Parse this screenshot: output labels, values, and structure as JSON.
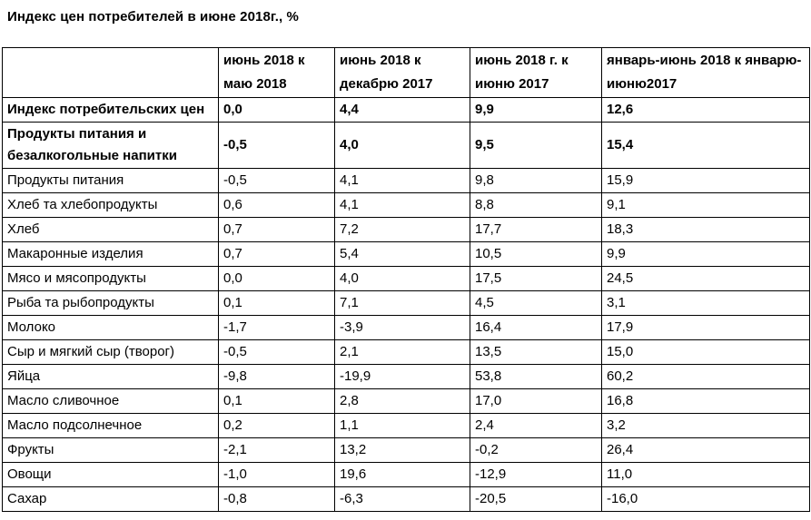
{
  "page": {
    "title": "Индекс цен потребителей в июне 2018г., %"
  },
  "colors": {
    "text": "#000000",
    "border": "#000000",
    "background": "#ffffff"
  },
  "table": {
    "columns": [
      {
        "label": ""
      },
      {
        "label": "июнь 2018 к маю 2018"
      },
      {
        "label": "июнь 2018 к декабрю 2017"
      },
      {
        "label": "июнь 2018 г. к июню 2017"
      },
      {
        "label": "январь-июнь 2018 к январю-июню2017"
      }
    ],
    "rows": [
      {
        "label": "Индекс потребительских цен",
        "values": [
          "0,0",
          "4,4",
          "9,9",
          "12,6"
        ],
        "bold": true
      },
      {
        "label": "Продукты питания и безалкогольные напитки",
        "values": [
          "-0,5",
          "4,0",
          "9,5",
          "15,4"
        ],
        "bold": true
      },
      {
        "label": "Продукты питания",
        "values": [
          "-0,5",
          "4,1",
          "9,8",
          "15,9"
        ],
        "bold": false
      },
      {
        "label": "Хлеб та хлебопродукты",
        "values": [
          "0,6",
          "4,1",
          "8,8",
          "9,1"
        ],
        "bold": false
      },
      {
        "label": "Хлеб",
        "values": [
          "0,7",
          "7,2",
          "17,7",
          "18,3"
        ],
        "bold": false
      },
      {
        "label": "Макаронные изделия",
        "values": [
          "0,7",
          "5,4",
          "10,5",
          "9,9"
        ],
        "bold": false
      },
      {
        "label": "Мясо и мясопродукты",
        "values": [
          "0,0",
          "4,0",
          "17,5",
          "24,5"
        ],
        "bold": false
      },
      {
        "label": "Рыба та рыбопродукты",
        "values": [
          "0,1",
          "7,1",
          "4,5",
          "3,1"
        ],
        "bold": false
      },
      {
        "label": "Молоко",
        "values": [
          "-1,7",
          "-3,9",
          "16,4",
          "17,9"
        ],
        "bold": false
      },
      {
        "label": "Сыр и мягкий сыр (творог)",
        "values": [
          "-0,5",
          "2,1",
          "13,5",
          "15,0"
        ],
        "bold": false
      },
      {
        "label": "Яйца",
        "values": [
          "-9,8",
          "-19,9",
          "53,8",
          "60,2"
        ],
        "bold": false
      },
      {
        "label": "Масло сливочное",
        "values": [
          "0,1",
          "2,8",
          "17,0",
          "16,8"
        ],
        "bold": false
      },
      {
        "label": "Масло подсолнечное",
        "values": [
          "0,2",
          "1,1",
          "2,4",
          "3,2"
        ],
        "bold": false
      },
      {
        "label": "Фрукты",
        "values": [
          "-2,1",
          "13,2",
          "-0,2",
          "26,4"
        ],
        "bold": false
      },
      {
        "label": "Овощи",
        "values": [
          "-1,0",
          "19,6",
          "-12,9",
          "11,0"
        ],
        "bold": false
      },
      {
        "label": "Сахар",
        "values": [
          "-0,8",
          "-6,3",
          "-20,5",
          "-16,0"
        ],
        "bold": false
      }
    ]
  }
}
